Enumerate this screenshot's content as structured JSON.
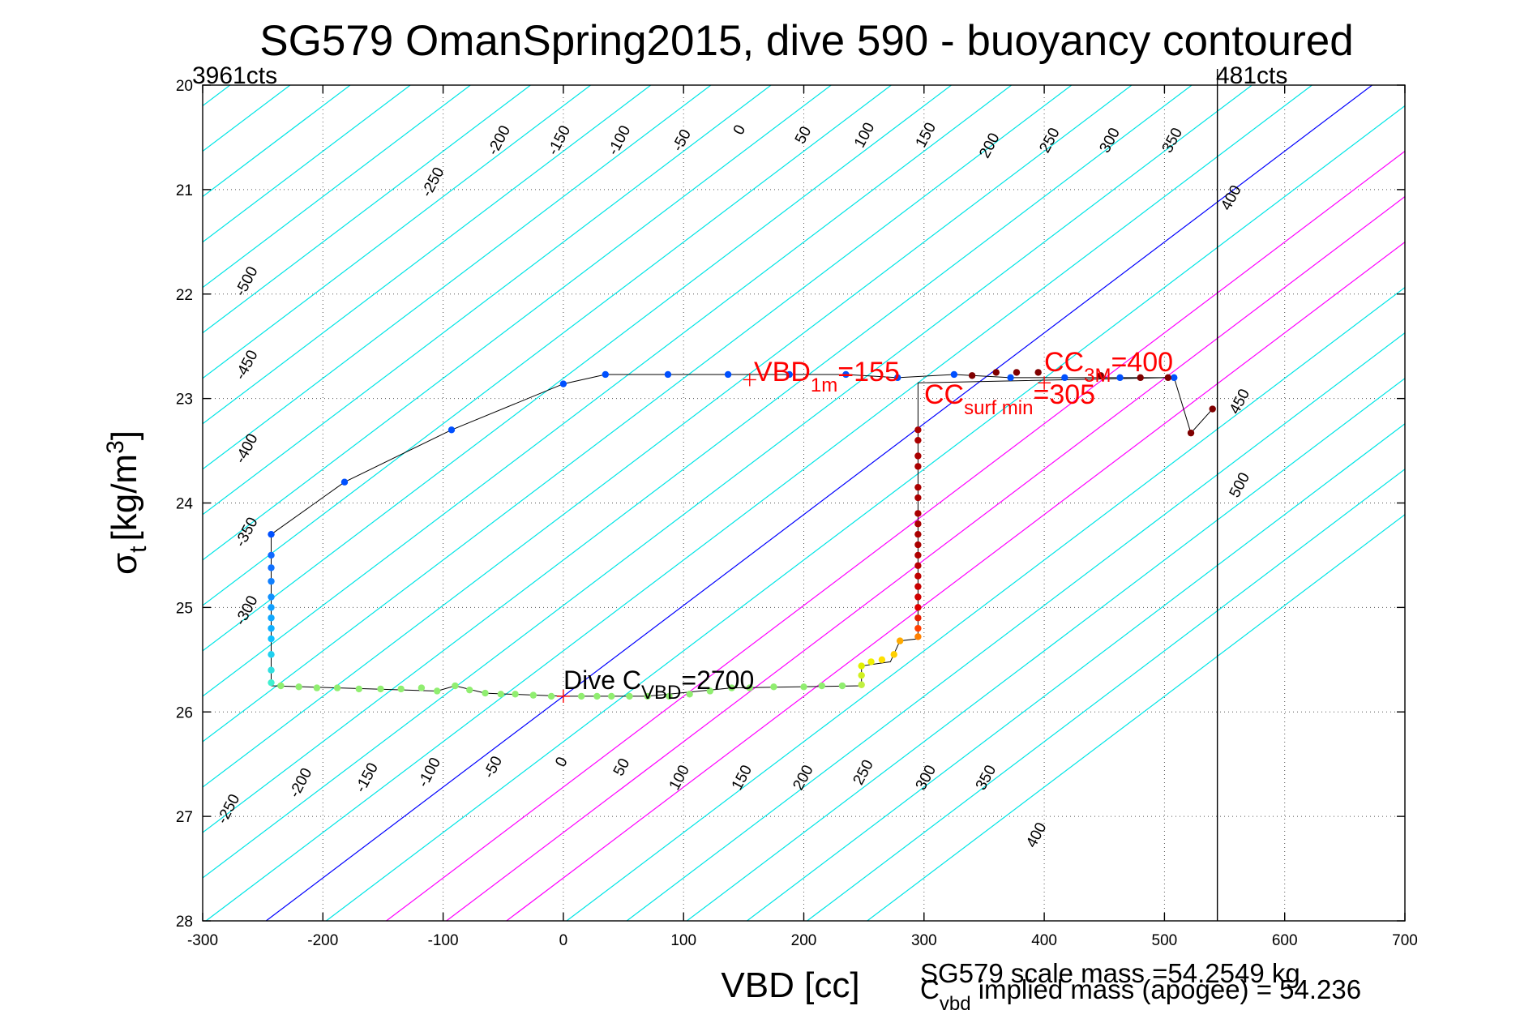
{
  "chart_data": {
    "type": "scatter",
    "title": "SG579 OmanSpring2015, dive 590 - buoyancy contoured",
    "xlabel": "VBD [cc]",
    "ylabel_main": "σ",
    "ylabel_sub": "t",
    "ylabel_units": "[kg/m",
    "ylabel_sup": "3",
    "ylabel_close": "]",
    "xlim": [
      -300,
      700
    ],
    "ylim": [
      20,
      28
    ],
    "y_reversed": true,
    "grid": true,
    "x_ticks": [
      "-300",
      "-200",
      "-100",
      "0",
      "100",
      "200",
      "300",
      "400",
      "500",
      "600",
      "700"
    ],
    "y_ticks": [
      "20",
      "21",
      "22",
      "23",
      "24",
      "25",
      "26",
      "27",
      "28"
    ],
    "counts_left": "3961cts",
    "counts_right": "481cts",
    "vbd_limit_line_x": 544,
    "contour_step_vbd_per_sigma": -115,
    "contour_levels": [
      -1150,
      -1100,
      -1050,
      -1000,
      -950,
      -900,
      -850,
      -800,
      -750,
      -700,
      -650,
      -600,
      -550,
      -500,
      -450,
      -400,
      -350,
      -300,
      -250,
      -200,
      -150,
      -100,
      -50,
      0,
      50,
      100,
      150,
      200,
      250,
      300,
      350,
      400,
      450,
      500
    ],
    "contour_colors": {
      "neutral": "#0000ff",
      "positive_band": "#ff00ff",
      "other": "#00e5e5"
    },
    "contour_labels_top": [
      {
        "text": "-250",
        "x": -105,
        "y": 20.95
      },
      {
        "text": "-200",
        "x": -50,
        "y": 20.55
      },
      {
        "text": "-150",
        "x": 0,
        "y": 20.55
      },
      {
        "text": "-100",
        "x": 50,
        "y": 20.55
      },
      {
        "text": "-50",
        "x": 102,
        "y": 20.55
      },
      {
        "text": "0",
        "x": 150,
        "y": 20.45
      },
      {
        "text": "50",
        "x": 203,
        "y": 20.5
      },
      {
        "text": "100",
        "x": 254,
        "y": 20.5
      },
      {
        "text": "150",
        "x": 305,
        "y": 20.5
      },
      {
        "text": "200",
        "x": 358,
        "y": 20.6
      },
      {
        "text": "250",
        "x": 408,
        "y": 20.55
      },
      {
        "text": "300",
        "x": 458,
        "y": 20.55
      },
      {
        "text": "350",
        "x": 510,
        "y": 20.55
      },
      {
        "text": "400",
        "x": 559,
        "y": 21.1
      }
    ],
    "contour_labels_mid": [
      {
        "text": "-500",
        "x": -260,
        "y": 21.9
      },
      {
        "text": "-450",
        "x": -260,
        "y": 22.7
      },
      {
        "text": "-400",
        "x": -260,
        "y": 23.5
      },
      {
        "text": "-350",
        "x": -260,
        "y": 24.3
      },
      {
        "text": "-300",
        "x": -260,
        "y": 25.05
      },
      {
        "text": "450",
        "x": 566,
        "y": 23.05
      },
      {
        "text": "500",
        "x": 566,
        "y": 23.85
      }
    ],
    "contour_labels_bottom": [
      {
        "text": "-250",
        "x": -275,
        "y": 26.95
      },
      {
        "text": "-200",
        "x": -215,
        "y": 26.7
      },
      {
        "text": "-150",
        "x": -160,
        "y": 26.65
      },
      {
        "text": "-100",
        "x": -108,
        "y": 26.6
      },
      {
        "text": "-50",
        "x": -55,
        "y": 26.55
      },
      {
        "text": "0",
        "x": 2,
        "y": 26.5
      },
      {
        "text": "50",
        "x": 52,
        "y": 26.55
      },
      {
        "text": "100",
        "x": 100,
        "y": 26.65
      },
      {
        "text": "150",
        "x": 152,
        "y": 26.65
      },
      {
        "text": "200",
        "x": 203,
        "y": 26.65
      },
      {
        "text": "250",
        "x": 253,
        "y": 26.6
      },
      {
        "text": "300",
        "x": 305,
        "y": 26.65
      },
      {
        "text": "350",
        "x": 355,
        "y": 26.65
      },
      {
        "text": "400",
        "x": 397,
        "y": 27.2
      }
    ],
    "profile": [
      {
        "x": -243,
        "y": 24.3
      },
      {
        "x": -182,
        "y": 23.8
      },
      {
        "x": -93,
        "y": 23.3
      },
      {
        "x": 0,
        "y": 22.86
      },
      {
        "x": 35,
        "y": 22.77
      },
      {
        "x": 87,
        "y": 22.77
      },
      {
        "x": 137,
        "y": 22.77
      },
      {
        "x": 188,
        "y": 22.77
      },
      {
        "x": 235,
        "y": 22.77
      },
      {
        "x": 278,
        "y": 22.8
      },
      {
        "x": 325,
        "y": 22.77
      },
      {
        "x": 372,
        "y": 22.8
      },
      {
        "x": 417,
        "y": 22.8
      },
      {
        "x": 463,
        "y": 22.8
      },
      {
        "x": 508,
        "y": 22.8
      },
      {
        "x": 522,
        "y": 23.33
      },
      {
        "x": 540,
        "y": 23.1
      }
    ],
    "return_path": [
      {
        "x": 500,
        "y": 22.8
      },
      {
        "x": 295,
        "y": 22.85
      },
      {
        "x": 295,
        "y": 25.3
      },
      {
        "x": 280,
        "y": 25.32
      },
      {
        "x": 272,
        "y": 25.52
      },
      {
        "x": 248,
        "y": 25.56
      },
      {
        "x": 248,
        "y": 25.75
      },
      {
        "x": 140,
        "y": 25.77
      },
      {
        "x": 70,
        "y": 25.85
      },
      {
        "x": 0,
        "y": 25.85
      },
      {
        "x": -65,
        "y": 25.82
      },
      {
        "x": -90,
        "y": 25.75
      },
      {
        "x": -105,
        "y": 25.8
      },
      {
        "x": -160,
        "y": 25.78
      },
      {
        "x": -243,
        "y": 25.75
      },
      {
        "x": -243,
        "y": 24.3
      }
    ],
    "points": [
      {
        "x": -243,
        "y": 24.3,
        "c": "#0050ff"
      },
      {
        "x": -182,
        "y": 23.8,
        "c": "#0050ff"
      },
      {
        "x": -93,
        "y": 23.3,
        "c": "#0050ff"
      },
      {
        "x": 0,
        "y": 22.86,
        "c": "#0050ff"
      },
      {
        "x": 35,
        "y": 22.77,
        "c": "#0050ff"
      },
      {
        "x": 87,
        "y": 22.77,
        "c": "#0050ff"
      },
      {
        "x": 137,
        "y": 22.77,
        "c": "#0050ff"
      },
      {
        "x": 188,
        "y": 22.77,
        "c": "#0050ff"
      },
      {
        "x": 235,
        "y": 22.77,
        "c": "#0050ff"
      },
      {
        "x": 278,
        "y": 22.8,
        "c": "#0050ff"
      },
      {
        "x": 325,
        "y": 22.77,
        "c": "#0050ff"
      },
      {
        "x": 372,
        "y": 22.8,
        "c": "#0050ff"
      },
      {
        "x": 417,
        "y": 22.8,
        "c": "#0050ff"
      },
      {
        "x": 463,
        "y": 22.8,
        "c": "#0050ff"
      },
      {
        "x": 508,
        "y": 22.8,
        "c": "#0050ff"
      },
      {
        "x": 340,
        "y": 22.78,
        "c": "#800000"
      },
      {
        "x": 360,
        "y": 22.75,
        "c": "#800000"
      },
      {
        "x": 377,
        "y": 22.75,
        "c": "#800000"
      },
      {
        "x": 395,
        "y": 22.75,
        "c": "#800000"
      },
      {
        "x": 447,
        "y": 22.78,
        "c": "#800000"
      },
      {
        "x": 480,
        "y": 22.8,
        "c": "#800000"
      },
      {
        "x": 503,
        "y": 22.8,
        "c": "#800000"
      },
      {
        "x": 522,
        "y": 23.33,
        "c": "#800000"
      },
      {
        "x": 540,
        "y": 23.1,
        "c": "#800000"
      },
      {
        "x": 295,
        "y": 23.3,
        "c": "#aa0000"
      },
      {
        "x": 295,
        "y": 23.4,
        "c": "#aa0000"
      },
      {
        "x": 295,
        "y": 23.55,
        "c": "#aa0000"
      },
      {
        "x": 295,
        "y": 23.65,
        "c": "#aa0000"
      },
      {
        "x": 295,
        "y": 23.85,
        "c": "#aa0000"
      },
      {
        "x": 295,
        "y": 23.95,
        "c": "#aa0000"
      },
      {
        "x": 295,
        "y": 24.1,
        "c": "#aa0000"
      },
      {
        "x": 295,
        "y": 24.2,
        "c": "#aa0000"
      },
      {
        "x": 295,
        "y": 24.3,
        "c": "#aa0000"
      },
      {
        "x": 295,
        "y": 24.4,
        "c": "#aa0000"
      },
      {
        "x": 295,
        "y": 24.5,
        "c": "#b00000"
      },
      {
        "x": 295,
        "y": 24.6,
        "c": "#b80000"
      },
      {
        "x": 295,
        "y": 24.7,
        "c": "#c00000"
      },
      {
        "x": 295,
        "y": 24.8,
        "c": "#c80000"
      },
      {
        "x": 295,
        "y": 24.9,
        "c": "#d00000"
      },
      {
        "x": 295,
        "y": 25.0,
        "c": "#dd0000"
      },
      {
        "x": 295,
        "y": 25.1,
        "c": "#e82000"
      },
      {
        "x": 295,
        "y": 25.2,
        "c": "#ff4000"
      },
      {
        "x": 295,
        "y": 25.28,
        "c": "#ff8000"
      },
      {
        "x": 280,
        "y": 25.32,
        "c": "#ffaa00"
      },
      {
        "x": 275,
        "y": 25.45,
        "c": "#ffd000"
      },
      {
        "x": 265,
        "y": 25.5,
        "c": "#ffe000"
      },
      {
        "x": 256,
        "y": 25.52,
        "c": "#f0f000"
      },
      {
        "x": 248,
        "y": 25.56,
        "c": "#e0f000"
      },
      {
        "x": 248,
        "y": 25.65,
        "c": "#d0f020"
      },
      {
        "x": 248,
        "y": 25.74,
        "c": "#c0f040"
      },
      {
        "x": 232,
        "y": 25.75,
        "c": "#90ee70"
      },
      {
        "x": 215,
        "y": 25.75,
        "c": "#90ee70"
      },
      {
        "x": 200,
        "y": 25.76,
        "c": "#90ee70"
      },
      {
        "x": 175,
        "y": 25.76,
        "c": "#90ee70"
      },
      {
        "x": 155,
        "y": 25.77,
        "c": "#90ee70"
      },
      {
        "x": 140,
        "y": 25.77,
        "c": "#90ee70"
      },
      {
        "x": 122,
        "y": 25.8,
        "c": "#90ee70"
      },
      {
        "x": 105,
        "y": 25.83,
        "c": "#90ee70"
      },
      {
        "x": 88,
        "y": 25.85,
        "c": "#90ee70"
      },
      {
        "x": 70,
        "y": 25.85,
        "c": "#90ee70"
      },
      {
        "x": 55,
        "y": 25.85,
        "c": "#90ee70"
      },
      {
        "x": 40,
        "y": 25.85,
        "c": "#90ee70"
      },
      {
        "x": 28,
        "y": 25.85,
        "c": "#90ee70"
      },
      {
        "x": 15,
        "y": 25.85,
        "c": "#90ee70"
      },
      {
        "x": -10,
        "y": 25.85,
        "c": "#90ee70"
      },
      {
        "x": -25,
        "y": 25.84,
        "c": "#90ee70"
      },
      {
        "x": -40,
        "y": 25.83,
        "c": "#90ee70"
      },
      {
        "x": -52,
        "y": 25.83,
        "c": "#90ee70"
      },
      {
        "x": -65,
        "y": 25.82,
        "c": "#90ee70"
      },
      {
        "x": -78,
        "y": 25.79,
        "c": "#90ee70"
      },
      {
        "x": -90,
        "y": 25.75,
        "c": "#90ee70"
      },
      {
        "x": -105,
        "y": 25.8,
        "c": "#90ee70"
      },
      {
        "x": -118,
        "y": 25.77,
        "c": "#90ee70"
      },
      {
        "x": -135,
        "y": 25.78,
        "c": "#90ee70"
      },
      {
        "x": -152,
        "y": 25.78,
        "c": "#90ee70"
      },
      {
        "x": -170,
        "y": 25.78,
        "c": "#90ee70"
      },
      {
        "x": -188,
        "y": 25.77,
        "c": "#90ee70"
      },
      {
        "x": -205,
        "y": 25.77,
        "c": "#90ee70"
      },
      {
        "x": -220,
        "y": 25.76,
        "c": "#90ee70"
      },
      {
        "x": -235,
        "y": 25.75,
        "c": "#90ee70"
      },
      {
        "x": -243,
        "y": 25.72,
        "c": "#40f0d0"
      },
      {
        "x": -243,
        "y": 25.6,
        "c": "#30e0e0"
      },
      {
        "x": -243,
        "y": 25.45,
        "c": "#20d0f0"
      },
      {
        "x": -243,
        "y": 25.3,
        "c": "#10c0ff"
      },
      {
        "x": -243,
        "y": 25.2,
        "c": "#10b0ff"
      },
      {
        "x": -243,
        "y": 25.1,
        "c": "#10a8ff"
      },
      {
        "x": -243,
        "y": 25.0,
        "c": "#10a0ff"
      },
      {
        "x": -243,
        "y": 24.9,
        "c": "#1090ff"
      },
      {
        "x": -243,
        "y": 24.75,
        "c": "#1080ff"
      },
      {
        "x": -243,
        "y": 24.62,
        "c": "#1070ff"
      },
      {
        "x": -243,
        "y": 24.5,
        "c": "#1068ff"
      }
    ],
    "markers": [
      {
        "x": 155,
        "y": 22.82
      },
      {
        "x": 400,
        "y": 22.85
      },
      {
        "x": 0,
        "y": 25.85
      }
    ],
    "annotations": {
      "vbd1m_main": "VBD",
      "vbd1m_sub": "1m",
      "vbd1m_val": "=155",
      "ccmax_main": "CC",
      "ccmax_sub": "3M",
      "ccmax_val": "=400",
      "ccsurf_main": "CC",
      "ccsurf_sub": "surf min",
      "ccsurf_val": "=305",
      "divec_main": "Dive C",
      "divec_sub": "VBD",
      "divec_val": "=2700"
    },
    "footer": {
      "line1": "SG579 scale mass =54.2549 kg",
      "line2_main": "C",
      "line2_sub": "vbd",
      "line2_rest": " implied mass (apogee) = 54.236"
    }
  }
}
